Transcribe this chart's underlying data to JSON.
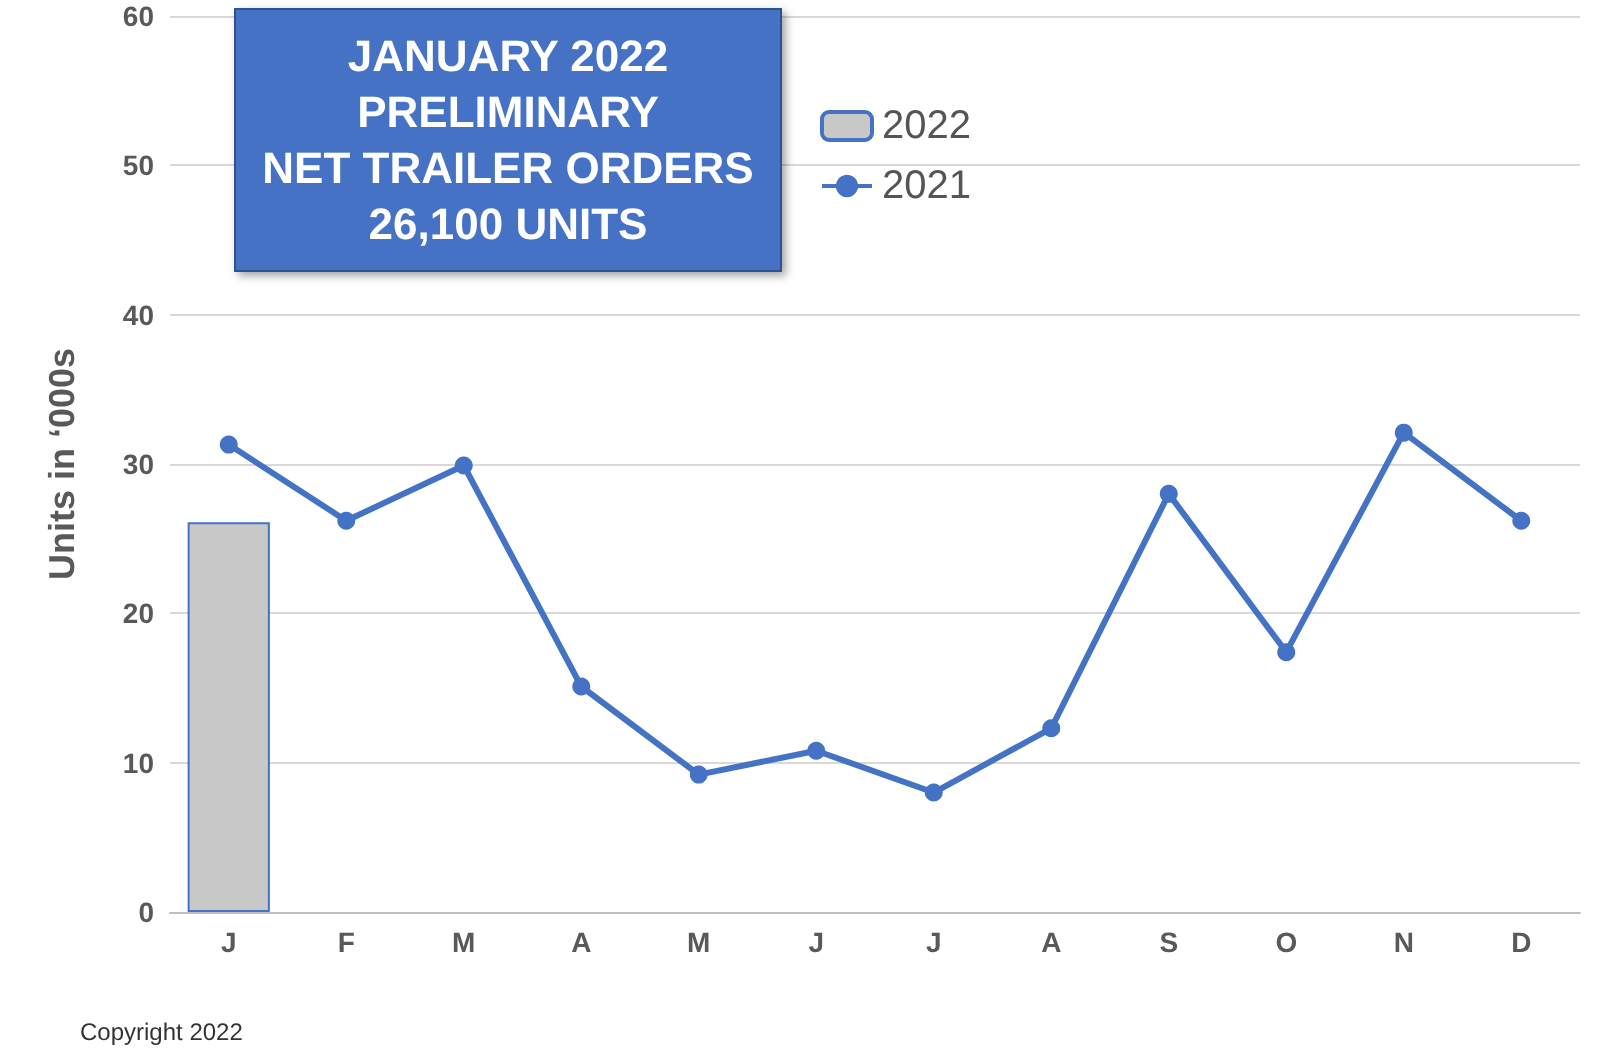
{
  "chart_data": {
    "type": "bar",
    "title": "JANUARY 2022\nPRELIMINARY\nNET TRAILER ORDERS\n26,100 UNITS",
    "ylabel": "Units in ‘000s",
    "categories": [
      "J",
      "F",
      "M",
      "A",
      "M",
      "J",
      "J",
      "A",
      "S",
      "O",
      "N",
      "D"
    ],
    "series": [
      {
        "name": "2022",
        "color": "#c8c8c8",
        "values": [
          26.1,
          null,
          null,
          null,
          null,
          null,
          null,
          null,
          null,
          null,
          null,
          null
        ]
      },
      {
        "name": "2021",
        "type": "line",
        "color": "#4472c4",
        "values": [
          31.3,
          26.2,
          29.9,
          15.1,
          9.2,
          10.8,
          8.0,
          12.3,
          28.0,
          17.4,
          32.1,
          26.2
        ]
      }
    ],
    "ylim": [
      0,
      60
    ],
    "yticks": [
      0,
      10,
      20,
      30,
      40,
      50,
      60
    ],
    "grid": "y",
    "legend": "top",
    "marker": "circle",
    "annotations": [
      "Copyright 2022"
    ]
  }
}
